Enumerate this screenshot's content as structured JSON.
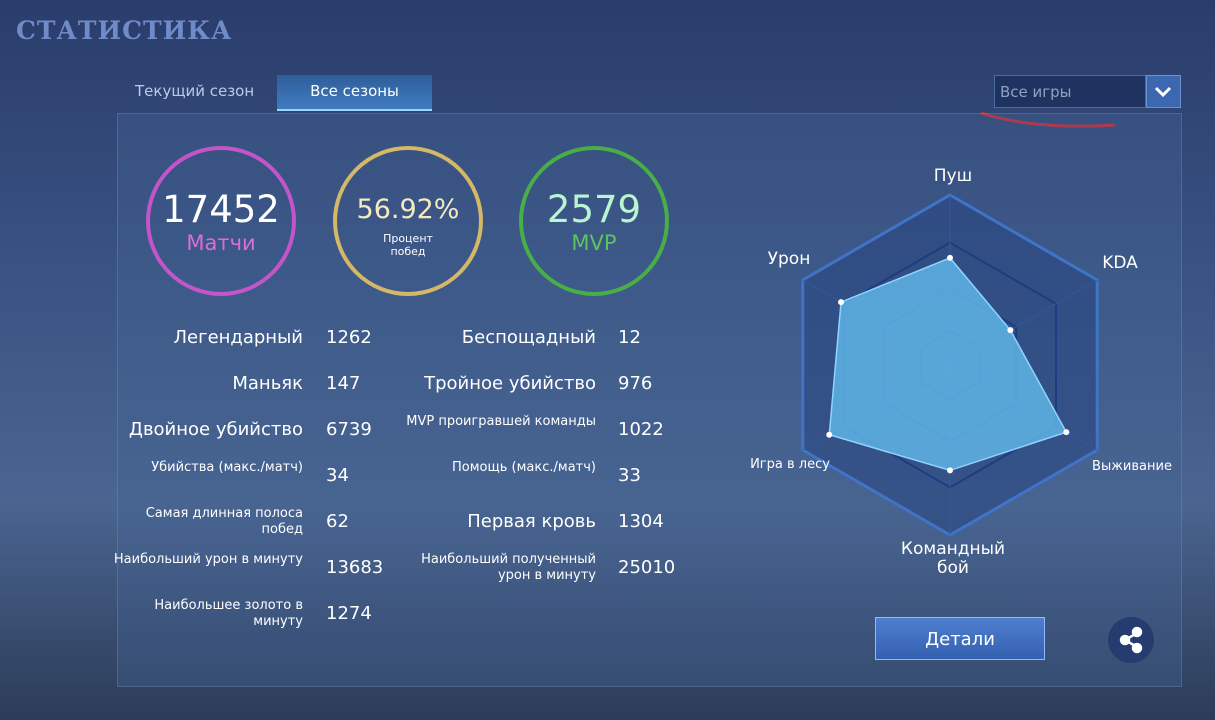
{
  "header": {
    "title": "СТАТИСТИКА"
  },
  "tabs": [
    "Текущий сезон",
    "Все сезоны"
  ],
  "filter": "Все игры",
  "summary": [
    {
      "value": "17452",
      "label": "Матчи"
    },
    {
      "value": "56.92%",
      "label": "Процент побед"
    },
    {
      "value": "2579",
      "label": "MVP"
    }
  ],
  "stats_left": [
    {
      "label": "Легендарный",
      "value": 1262
    },
    {
      "label": "Маньяк",
      "value": 147
    },
    {
      "label": "Двойное убийство",
      "value": 6739
    },
    {
      "label": "Убийства (макс./матч)",
      "value": 34
    },
    {
      "label": "Самая длинная полоса побед",
      "value": 62
    },
    {
      "label": "Наибольший урон в минуту",
      "value": 13683
    },
    {
      "label": "Наибольшее золото в минуту",
      "value": 1274
    }
  ],
  "stats_right": [
    {
      "label": "Беспощадный",
      "value": 12
    },
    {
      "label": "Тройное убийство",
      "value": 976
    },
    {
      "label": "MVP проигравшей команды",
      "value": 1022
    },
    {
      "label": "Помощь (макс./матч)",
      "value": 33
    },
    {
      "label": "Первая кровь",
      "value": 1304
    },
    {
      "label": "Наибольший полученный урон в минуту",
      "value": 25010
    }
  ],
  "radar": {
    "axes": [
      "Пуш",
      "KDA",
      "Выживание",
      "Командный бой",
      "Игра в лесу",
      "Урон"
    ],
    "values": [
      63,
      41,
      79,
      62,
      82,
      74
    ],
    "max": 100
  },
  "buttons": {
    "details": "Детали"
  }
}
